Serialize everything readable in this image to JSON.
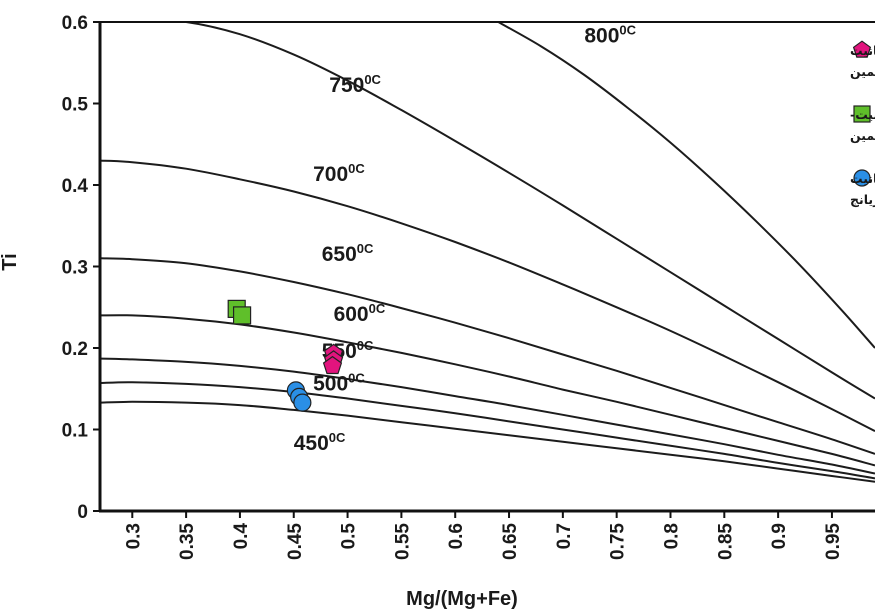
{
  "chart_data": {
    "type": "line",
    "xlabel": "Mg/(Mg+Fe)",
    "ylabel": "Ti",
    "xlim": [
      0.27,
      0.99
    ],
    "ylim": [
      0,
      0.6
    ],
    "x_ticks": [
      "0.3",
      "0.35",
      "0.4",
      "0.45",
      "0.5",
      "0.55",
      "0.6",
      "0.65",
      "0.7",
      "0.75",
      "0.8",
      "0.85",
      "0.9",
      "0.95"
    ],
    "y_ticks": [
      "0",
      "0.1",
      "0.2",
      "0.3",
      "0.4",
      "0.5",
      "0.6"
    ],
    "isotherms": [
      {
        "label": "450",
        "unit": "0C",
        "label_at": [
          0.45,
          0.075
        ],
        "points": [
          [
            0.27,
            0.133
          ],
          [
            0.3,
            0.134
          ],
          [
            0.35,
            0.133
          ],
          [
            0.4,
            0.13
          ],
          [
            0.45,
            0.124
          ],
          [
            0.5,
            0.117
          ],
          [
            0.55,
            0.109
          ],
          [
            0.6,
            0.101
          ],
          [
            0.65,
            0.093
          ],
          [
            0.7,
            0.085
          ],
          [
            0.75,
            0.077
          ],
          [
            0.8,
            0.069
          ],
          [
            0.85,
            0.061
          ],
          [
            0.9,
            0.052
          ],
          [
            0.95,
            0.043
          ],
          [
            0.99,
            0.036
          ]
        ]
      },
      {
        "label": "500",
        "unit": "0C",
        "label_at": [
          0.468,
          0.148
        ],
        "points": [
          [
            0.27,
            0.157
          ],
          [
            0.3,
            0.158
          ],
          [
            0.35,
            0.156
          ],
          [
            0.4,
            0.152
          ],
          [
            0.45,
            0.146
          ],
          [
            0.5,
            0.138
          ],
          [
            0.55,
            0.129
          ],
          [
            0.6,
            0.12
          ],
          [
            0.65,
            0.11
          ],
          [
            0.7,
            0.1
          ],
          [
            0.75,
            0.09
          ],
          [
            0.8,
            0.08
          ],
          [
            0.85,
            0.07
          ],
          [
            0.9,
            0.059
          ],
          [
            0.95,
            0.049
          ],
          [
            0.99,
            0.04
          ]
        ]
      },
      {
        "label": "550",
        "unit": "0C",
        "label_at": [
          0.476,
          0.188
        ],
        "points": [
          [
            0.27,
            0.187
          ],
          [
            0.3,
            0.186
          ],
          [
            0.35,
            0.183
          ],
          [
            0.4,
            0.178
          ],
          [
            0.45,
            0.171
          ],
          [
            0.5,
            0.162
          ],
          [
            0.55,
            0.152
          ],
          [
            0.6,
            0.141
          ],
          [
            0.65,
            0.13
          ],
          [
            0.7,
            0.118
          ],
          [
            0.75,
            0.106
          ],
          [
            0.8,
            0.094
          ],
          [
            0.85,
            0.082
          ],
          [
            0.9,
            0.069
          ],
          [
            0.95,
            0.057
          ],
          [
            0.99,
            0.046
          ]
        ]
      },
      {
        "label": "600",
        "unit": "0C",
        "label_at": [
          0.487,
          0.233
        ],
        "points": [
          [
            0.27,
            0.24
          ],
          [
            0.3,
            0.24
          ],
          [
            0.35,
            0.236
          ],
          [
            0.4,
            0.229
          ],
          [
            0.45,
            0.219
          ],
          [
            0.5,
            0.207
          ],
          [
            0.55,
            0.194
          ],
          [
            0.6,
            0.18
          ],
          [
            0.65,
            0.165
          ],
          [
            0.7,
            0.149
          ],
          [
            0.75,
            0.134
          ],
          [
            0.8,
            0.118
          ],
          [
            0.85,
            0.102
          ],
          [
            0.9,
            0.086
          ],
          [
            0.95,
            0.07
          ],
          [
            0.99,
            0.056
          ]
        ]
      },
      {
        "label": "650",
        "unit": "0C",
        "label_at": [
          0.476,
          0.307
        ],
        "points": [
          [
            0.27,
            0.31
          ],
          [
            0.3,
            0.309
          ],
          [
            0.35,
            0.304
          ],
          [
            0.4,
            0.294
          ],
          [
            0.45,
            0.281
          ],
          [
            0.5,
            0.266
          ],
          [
            0.55,
            0.249
          ],
          [
            0.6,
            0.231
          ],
          [
            0.65,
            0.212
          ],
          [
            0.7,
            0.192
          ],
          [
            0.75,
            0.172
          ],
          [
            0.8,
            0.151
          ],
          [
            0.85,
            0.13
          ],
          [
            0.9,
            0.109
          ],
          [
            0.95,
            0.088
          ],
          [
            0.99,
            0.07
          ]
        ]
      },
      {
        "label": "700",
        "unit": "0C",
        "label_at": [
          0.468,
          0.405
        ],
        "points": [
          [
            0.27,
            0.43
          ],
          [
            0.3,
            0.428
          ],
          [
            0.35,
            0.42
          ],
          [
            0.4,
            0.407
          ],
          [
            0.45,
            0.392
          ],
          [
            0.5,
            0.374
          ],
          [
            0.55,
            0.353
          ],
          [
            0.6,
            0.33
          ],
          [
            0.65,
            0.305
          ],
          [
            0.7,
            0.278
          ],
          [
            0.75,
            0.25
          ],
          [
            0.8,
            0.221
          ],
          [
            0.85,
            0.19
          ],
          [
            0.9,
            0.158
          ],
          [
            0.95,
            0.125
          ],
          [
            0.99,
            0.098
          ]
        ]
      },
      {
        "label": "750",
        "unit": "0C",
        "label_at": [
          0.483,
          0.514
        ],
        "points": [
          [
            0.319,
            0.6
          ],
          [
            0.35,
            0.6
          ],
          [
            0.4,
            0.585
          ],
          [
            0.45,
            0.56
          ],
          [
            0.5,
            0.528
          ],
          [
            0.55,
            0.492
          ],
          [
            0.6,
            0.454
          ],
          [
            0.65,
            0.415
          ],
          [
            0.7,
            0.375
          ],
          [
            0.75,
            0.334
          ],
          [
            0.8,
            0.293
          ],
          [
            0.85,
            0.252
          ],
          [
            0.9,
            0.211
          ],
          [
            0.95,
            0.17
          ],
          [
            0.99,
            0.138
          ]
        ]
      },
      {
        "label": "800",
        "unit": "0C",
        "label_at": [
          0.72,
          0.575
        ],
        "points": [
          [
            0.64,
            0.6
          ],
          [
            0.68,
            0.57
          ],
          [
            0.72,
            0.535
          ],
          [
            0.76,
            0.495
          ],
          [
            0.8,
            0.452
          ],
          [
            0.84,
            0.405
          ],
          [
            0.88,
            0.355
          ],
          [
            0.92,
            0.302
          ],
          [
            0.96,
            0.245
          ],
          [
            0.99,
            0.2
          ]
        ]
      }
    ],
    "series": [
      {
        "name": "سیلیمانیت- استارولیت- کیانیت هورنفلس های منطقه سیمین",
        "marker": "pentagon",
        "color": "#e2147e",
        "x": [
          0.487,
          0.487,
          0.486
        ],
        "y": [
          0.193,
          0.185,
          0.178
        ]
      },
      {
        "name": "سیلیمانیت- آندالوزیت- کیانیت- استارولیت میگماتیت های منطقه سیمین",
        "marker": "square",
        "color": "#5fbf2a",
        "x": [
          0.397,
          0.402
        ],
        "y": [
          0.248,
          0.24
        ]
      },
      {
        "name": "سیلیمانیت- استارولیت- کیانیت هورنفلس منطقه مریانج",
        "marker": "circle",
        "color": "#2a8fe6",
        "x": [
          0.452,
          0.455,
          0.458
        ],
        "y": [
          0.148,
          0.14,
          0.133
        ]
      }
    ],
    "legend": {
      "placement": "top-right",
      "entries": [
        {
          "lines": [
            "سیلیمانیت- استارولیت- کیانیت",
            "هورنفلس های منطقه سیمین"
          ]
        },
        {
          "lines": [
            "سیلیمانیت- آندالوزیت- کیانیت-",
            "استارولیت میگماتیت های منطقه سیمین"
          ]
        },
        {
          "lines": [
            "سیلیمانیت- استارولیت- کیانیت",
            "هورنفلس منطقه مریانج"
          ]
        }
      ]
    }
  }
}
